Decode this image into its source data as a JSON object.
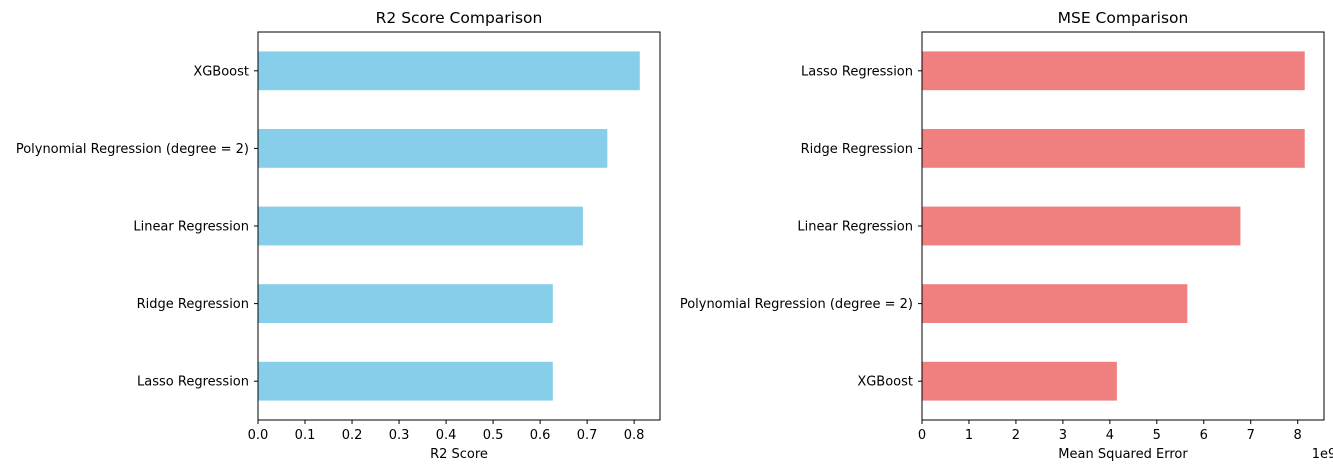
{
  "chart_data": [
    {
      "type": "bar",
      "orientation": "horizontal",
      "title": "R2 Score Comparison",
      "xlabel": "R2 Score",
      "ylabel": "",
      "categories": [
        "Lasso Regression",
        "Ridge Regression",
        "Linear Regression",
        "Polynomial Regression (degree = 2)",
        "XGBoost"
      ],
      "values": [
        0.627,
        0.627,
        0.691,
        0.743,
        0.812
      ],
      "xlim": [
        0,
        0.855
      ],
      "xticks": [
        0.0,
        0.1,
        0.2,
        0.3,
        0.4,
        0.5,
        0.6,
        0.7,
        0.8
      ],
      "xtick_labels": [
        "0.0",
        "0.1",
        "0.2",
        "0.3",
        "0.4",
        "0.5",
        "0.6",
        "0.7",
        "0.8"
      ],
      "offset_text": "",
      "color": "#87ceeb",
      "grid": false
    },
    {
      "type": "bar",
      "orientation": "horizontal",
      "title": "MSE Comparison",
      "xlabel": "Mean Squared Error",
      "ylabel": "",
      "categories": [
        "XGBoost",
        "Polynomial Regression (degree = 2)",
        "Linear Regression",
        "Ridge Regression",
        "Lasso Regression"
      ],
      "values": [
        4150000000,
        5650000000,
        6780000000,
        8150000000,
        8150000000
      ],
      "xlim": [
        0,
        8560000000
      ],
      "xticks": [
        0,
        1000000000,
        2000000000,
        3000000000,
        4000000000,
        5000000000,
        6000000000,
        7000000000,
        8000000000
      ],
      "xtick_labels": [
        "0",
        "1",
        "2",
        "3",
        "4",
        "5",
        "6",
        "7",
        "8"
      ],
      "offset_text": "1e9",
      "color": "#f08080",
      "grid": false
    }
  ]
}
